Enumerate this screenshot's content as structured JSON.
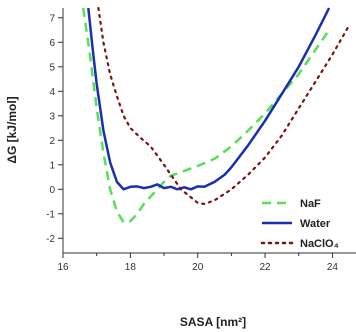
{
  "chart_data": {
    "type": "line",
    "xlabel": "SASA [nm²]",
    "ylabel": "ΔG [kJ/mol]",
    "xlim": [
      16,
      24.7
    ],
    "ylim": [
      -2.6,
      7.4
    ],
    "xticks": [
      16,
      18,
      20,
      22,
      24
    ],
    "yticks": [
      -2,
      -1,
      0,
      1,
      2,
      3,
      4,
      5,
      6,
      7
    ],
    "grid": false,
    "legend_position": "bottom-right",
    "series": [
      {
        "name": "NaF",
        "color": "#55e055",
        "style": "dashed",
        "x": [
          16.6,
          16.8,
          17.0,
          17.2,
          17.4,
          17.6,
          17.8,
          18.0,
          18.2,
          18.4,
          18.6,
          18.8,
          19.0,
          19.2,
          19.5,
          20.0,
          20.5,
          21.0,
          21.5,
          22.0,
          22.5,
          23.0,
          23.5,
          23.9
        ],
        "y": [
          7.4,
          5.5,
          3.3,
          1.5,
          0.0,
          -0.9,
          -1.35,
          -1.3,
          -1.0,
          -0.6,
          -0.3,
          0.0,
          0.3,
          0.55,
          0.7,
          0.95,
          1.25,
          1.75,
          2.4,
          3.1,
          3.9,
          4.7,
          5.7,
          6.5
        ]
      },
      {
        "name": "Water",
        "color": "#1a2fb0",
        "style": "solid",
        "x": [
          16.75,
          16.9,
          17.0,
          17.2,
          17.4,
          17.6,
          17.8,
          18.0,
          18.2,
          18.4,
          18.6,
          18.8,
          19.0,
          19.2,
          19.4,
          19.6,
          19.8,
          20.0,
          20.2,
          20.5,
          20.8,
          21.0,
          21.5,
          22.0,
          22.5,
          23.0,
          23.5,
          23.9
        ],
        "y": [
          7.4,
          5.5,
          4.3,
          2.4,
          1.1,
          0.3,
          0.0,
          0.1,
          0.12,
          0.05,
          0.1,
          0.2,
          0.05,
          0.1,
          0.0,
          0.08,
          0.0,
          0.12,
          0.1,
          0.3,
          0.6,
          0.9,
          1.8,
          2.8,
          3.9,
          5.0,
          6.3,
          7.4
        ]
      },
      {
        "name": "NaClO₄",
        "color": "#7a1212",
        "style": "dotted",
        "x": [
          17.05,
          17.2,
          17.4,
          17.6,
          17.8,
          18.0,
          18.3,
          18.6,
          19.0,
          19.5,
          20.0,
          20.2,
          20.5,
          21.0,
          21.5,
          22.0,
          22.5,
          23.0,
          23.5,
          24.0,
          24.5
        ],
        "y": [
          7.4,
          6.0,
          4.7,
          3.8,
          3.0,
          2.5,
          2.1,
          1.75,
          1.0,
          0.0,
          -0.55,
          -0.6,
          -0.45,
          0.0,
          0.6,
          1.3,
          2.2,
          3.3,
          4.4,
          5.5,
          6.7
        ]
      }
    ]
  }
}
